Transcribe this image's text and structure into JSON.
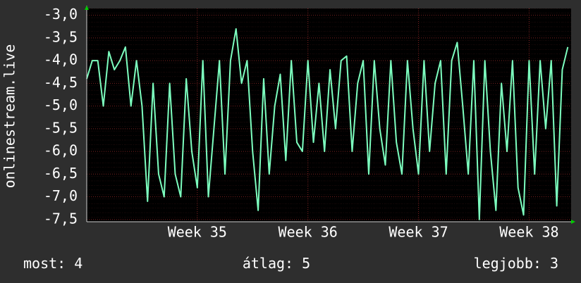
{
  "chart_data": {
    "type": "line",
    "ylabel": "onlinestream.live",
    "color": "#7dffbf",
    "grid": true,
    "x": [
      34.0,
      34.05,
      34.1,
      34.15,
      34.2,
      34.25,
      34.3,
      34.35,
      34.4,
      34.45,
      34.5,
      34.55,
      34.6,
      34.65,
      34.7,
      34.75,
      34.8,
      34.85,
      34.9,
      34.95,
      35.0,
      35.05,
      35.1,
      35.15,
      35.2,
      35.25,
      35.3,
      35.35,
      35.4,
      35.45,
      35.5,
      35.55,
      35.6,
      35.65,
      35.7,
      35.75,
      35.8,
      35.85,
      35.9,
      35.95,
      36.0,
      36.05,
      36.1,
      36.15,
      36.2,
      36.25,
      36.3,
      36.35,
      36.4,
      36.45,
      36.5,
      36.55,
      36.6,
      36.65,
      36.7,
      36.75,
      36.8,
      36.85,
      36.9,
      36.95,
      37.0,
      37.05,
      37.1,
      37.15,
      37.2,
      37.25,
      37.3,
      37.35,
      37.4,
      37.45,
      37.5,
      37.55,
      37.6,
      37.65,
      37.7,
      37.75,
      37.8,
      37.85,
      37.9,
      37.95,
      38.0,
      38.05,
      38.1,
      38.15,
      38.2,
      38.25,
      38.3,
      38.35
    ],
    "values": [
      -4.4,
      -4.0,
      -4.0,
      -5.0,
      -3.8,
      -4.2,
      -4.0,
      -3.7,
      -5.0,
      -4.0,
      -5.0,
      -7.1,
      -4.5,
      -6.5,
      -7.0,
      -4.5,
      -6.5,
      -7.0,
      -4.4,
      -6.0,
      -6.8,
      -4.0,
      -7.0,
      -5.5,
      -4.0,
      -6.5,
      -4.0,
      -3.3,
      -4.5,
      -4.0,
      -6.0,
      -7.3,
      -4.4,
      -6.5,
      -5.0,
      -4.3,
      -6.2,
      -4.0,
      -5.8,
      -6.0,
      -4.0,
      -5.8,
      -4.5,
      -6.0,
      -4.2,
      -5.5,
      -4.0,
      -3.9,
      -6.0,
      -4.5,
      -4.0,
      -6.5,
      -4.0,
      -5.5,
      -6.3,
      -4.0,
      -5.8,
      -6.5,
      -4.0,
      -5.5,
      -6.5,
      -4.0,
      -6.0,
      -4.5,
      -4.0,
      -6.5,
      -4.0,
      -3.6,
      -5.0,
      -6.5,
      -4.0,
      -7.5,
      -4.0,
      -6.0,
      -7.3,
      -4.5,
      -6.0,
      -4.0,
      -6.8,
      -7.4,
      -4.0,
      -6.5,
      -4.0,
      -5.5,
      -4.0,
      -7.2,
      -4.2,
      -3.7
    ],
    "xlim": [
      34.0,
      38.38
    ],
    "ylim": [
      -7.55,
      -2.85
    ],
    "xticks": [
      {
        "value": 35,
        "label": "Week 35"
      },
      {
        "value": 36,
        "label": "Week 36"
      },
      {
        "value": 37,
        "label": "Week 37"
      },
      {
        "value": 38,
        "label": "Week 38"
      }
    ],
    "yticks": [
      {
        "value": -3.0,
        "label": "-3,0"
      },
      {
        "value": -3.5,
        "label": "-3,5"
      },
      {
        "value": -4.0,
        "label": "-4,0"
      },
      {
        "value": -4.5,
        "label": "-4,5"
      },
      {
        "value": -5.0,
        "label": "-5,0"
      },
      {
        "value": -5.5,
        "label": "-5,5"
      },
      {
        "value": -6.0,
        "label": "-6,0"
      },
      {
        "value": -6.5,
        "label": "-6,5"
      },
      {
        "value": -7.0,
        "label": "-7,0"
      },
      {
        "value": -7.5,
        "label": "-7,5"
      }
    ]
  },
  "summary": [
    {
      "label": "most:",
      "value": 4
    },
    {
      "label": "átlag:",
      "value": 5
    },
    {
      "label": "legjobb:",
      "value": 3
    }
  ]
}
